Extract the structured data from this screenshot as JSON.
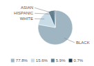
{
  "chart_data": {
    "type": "pie",
    "categories": [
      "BLACK",
      "WHITE",
      "HISPANIC",
      "ASIAN"
    ],
    "values": [
      77.8,
      15.6,
      5.9,
      0.7
    ],
    "value_labels": [
      "77.8%",
      "15.6%",
      "5.9%",
      "0.7%"
    ],
    "colors": [
      "#a0b5c2",
      "#c8dce8",
      "#5c7e92",
      "#1e3d52"
    ],
    "legend": "bottom"
  }
}
